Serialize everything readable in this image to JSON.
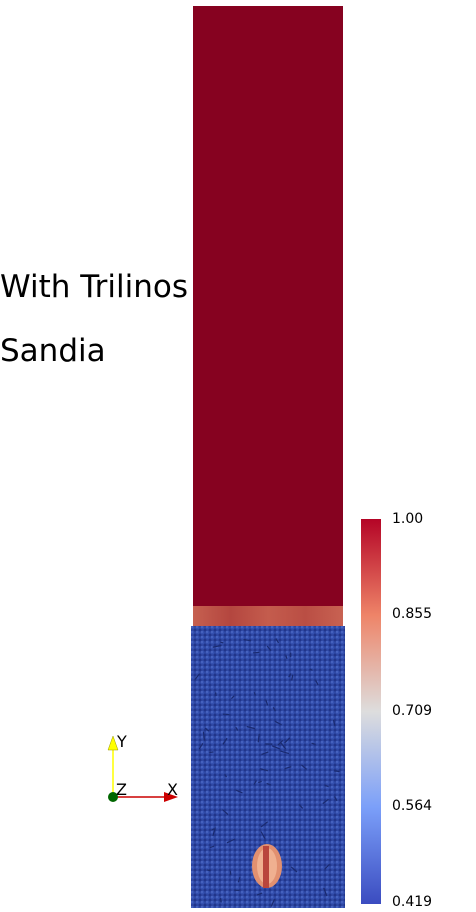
{
  "captions": [
    "With Trilinos",
    "Sandia"
  ],
  "colorbar": {
    "labels": [
      "1.00",
      "0.855",
      "0.709",
      "0.564",
      "0.419"
    ],
    "colors": {
      "high": "#b40426",
      "mid": "#dddddd",
      "low": "#3b4cc0"
    }
  },
  "axes": {
    "y": "Y",
    "z": "Z",
    "x": "X"
  },
  "colors": {
    "upper_block": "#860220",
    "particles": "#2f4aa8",
    "particle_edge": "#20348a",
    "interface_band": "#c0594a",
    "hole": "#e49070",
    "axis_y": "#ffff00",
    "axis_x": "#cc0000",
    "axis_z": "#006600"
  }
}
